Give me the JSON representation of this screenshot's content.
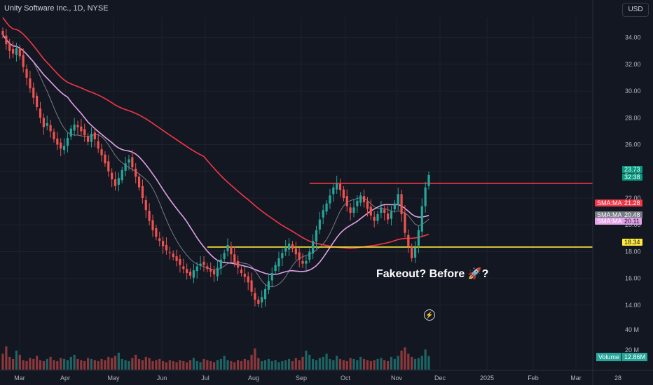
{
  "header": {
    "title": "Unity Software Inc., 1D, NYSE",
    "currency": "USD"
  },
  "annotation": "Fakeout? Before 🚀?",
  "colors": {
    "up": "#26a69a",
    "down": "#ef5350",
    "sma_red": "#f23645",
    "sma_pink": "#e1a1e8",
    "sma_gray": "#787b86",
    "level": "#ffeb3b",
    "bg": "#131722"
  },
  "price_tags": [
    {
      "label": "",
      "value": "23.73",
      "color": "#089981"
    },
    {
      "label": "",
      "value": "32:38",
      "color": "#089981"
    },
    {
      "label": "SMA:MA",
      "value": "21.28",
      "color": "#f23645"
    },
    {
      "label": "SMA:MA",
      "value": "20.48",
      "color": "#787b86"
    },
    {
      "label": "SMA:MA",
      "value": "20.11",
      "color": "#e1a1e8"
    },
    {
      "label": "",
      "value": "18.34",
      "color": "#ffeb3b"
    }
  ],
  "volume": {
    "label": "Volume",
    "value": "12.86M",
    "axis": [
      "40 M",
      "20 M"
    ]
  },
  "chart_data": {
    "type": "candlestick",
    "x_ticks": [
      "Mar",
      "Apr",
      "May",
      "Jun",
      "Jul",
      "Aug",
      "Sep",
      "Oct",
      "Nov",
      "Dec",
      "2025",
      "Feb",
      "Mar",
      "28"
    ],
    "y_ticks": [
      "34.00",
      "32.00",
      "30.00",
      "28.00",
      "26.00",
      "24.00",
      "22.00",
      "20.00",
      "18.00",
      "16.00",
      "14.00"
    ],
    "ylim": [
      13.0,
      35.5
    ],
    "levels": [
      {
        "name": "resistance",
        "value": 23.1,
        "from": 0.72,
        "to": 1.0,
        "color": "#f23645"
      },
      {
        "name": "support",
        "value": 18.34,
        "from": 0.48,
        "to": 1.0,
        "color": "#ffeb3b"
      }
    ],
    "closes": [
      34.2,
      33.5,
      33.0,
      32.8,
      33.2,
      32.6,
      31.8,
      31.0,
      30.2,
      29.5,
      28.8,
      28.0,
      27.3,
      27.6,
      27.0,
      26.4,
      26.0,
      25.7,
      25.9,
      26.5,
      27.2,
      27.5,
      27.3,
      27.0,
      26.7,
      26.2,
      26.8,
      26.4,
      25.7,
      25.2,
      24.6,
      24.0,
      23.4,
      22.9,
      23.5,
      24.1,
      24.6,
      24.9,
      24.3,
      23.6,
      22.8,
      22.0,
      21.1,
      20.3,
      19.6,
      19.1,
      18.8,
      18.4,
      18.1,
      17.9,
      17.6,
      17.3,
      17.0,
      16.7,
      16.4,
      16.2,
      16.6,
      16.9,
      17.1,
      17.0,
      16.7,
      16.5,
      16.3,
      16.8,
      17.4,
      17.9,
      18.5,
      17.8,
      17.2,
      16.8,
      16.4,
      16.1,
      15.7,
      15.0,
      14.4,
      14.1,
      14.6,
      15.2,
      15.8,
      16.4,
      17.0,
      17.5,
      17.9,
      18.3,
      18.6,
      18.2,
      17.8,
      17.4,
      17.1,
      17.3,
      18.0,
      18.8,
      19.6,
      20.4,
      21.1,
      21.6,
      22.2,
      22.8,
      23.1,
      22.6,
      22.0,
      21.4,
      20.9,
      21.3,
      21.8,
      22.2,
      21.7,
      21.2,
      20.7,
      20.3,
      20.8,
      21.3,
      20.9,
      20.4,
      21.0,
      21.6,
      22.3,
      20.8,
      19.4,
      18.4,
      17.5,
      18.3,
      19.6,
      21.4,
      22.8,
      23.73
    ],
    "volumes": [
      15,
      22,
      12,
      10,
      18,
      14,
      9,
      8,
      11,
      10,
      13,
      9,
      8,
      10,
      12,
      9,
      8,
      11,
      10,
      9,
      12,
      14,
      10,
      9,
      8,
      11,
      10,
      9,
      8,
      10,
      9,
      12,
      11,
      13,
      16,
      10,
      9,
      8,
      11,
      14,
      10,
      9,
      12,
      11,
      8,
      9,
      10,
      8,
      7,
      9,
      8,
      7,
      9,
      8,
      7,
      9,
      11,
      8,
      7,
      10,
      9,
      8,
      7,
      9,
      10,
      13,
      9,
      8,
      7,
      9,
      8,
      10,
      9,
      14,
      20,
      11,
      8,
      9,
      10,
      8,
      9,
      7,
      8,
      9,
      10,
      8,
      11,
      9,
      12,
      18,
      14,
      10,
      9,
      11,
      12,
      15,
      10,
      9,
      13,
      10,
      9,
      8,
      11,
      10,
      9,
      12,
      10,
      9,
      8,
      9,
      10,
      11,
      9,
      8,
      12,
      10,
      13,
      18,
      21,
      15,
      12,
      10,
      11,
      13,
      19,
      12.86
    ]
  }
}
